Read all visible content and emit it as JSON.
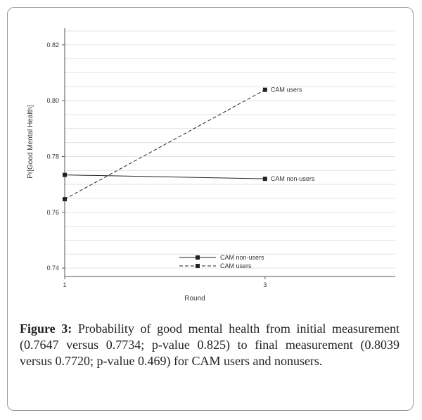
{
  "chart_data": {
    "type": "line",
    "xlabel": "Round",
    "ylabel": "Pr[Good Mental Health]",
    "x": [
      1,
      3
    ],
    "x_ticks": [
      "1",
      "3"
    ],
    "xlim": [
      1,
      4.3
    ],
    "ylim": [
      0.737,
      0.826
    ],
    "y_ticks": [
      "0.74",
      "0.76",
      "0.78",
      "0.80",
      "0.82"
    ],
    "y_tick_values": [
      0.74,
      0.76,
      0.78,
      0.8,
      0.82
    ],
    "grid": true,
    "legend_placement": "bottom-center",
    "series": [
      {
        "name": "CAM non-users",
        "values": [
          0.7734,
          0.772
        ],
        "line_style": "solid",
        "marker": "square",
        "end_label": "CAM non-users"
      },
      {
        "name": "CAM users",
        "values": [
          0.7647,
          0.8039
        ],
        "line_style": "dashed",
        "marker": "square",
        "end_label": "CAM users"
      }
    ],
    "colors": {
      "line": "#222222",
      "grid": "#e3e3e3",
      "axis": "#555555",
      "text": "#333333"
    }
  },
  "caption": {
    "label": "Figure 3:",
    "text": " Probability of good mental health from initial measurement (0.7647 versus 0.7734; p-value 0.825) to final measurement (0.8039 versus 0.7720; p-value 0.469) for CAM users and nonusers."
  }
}
